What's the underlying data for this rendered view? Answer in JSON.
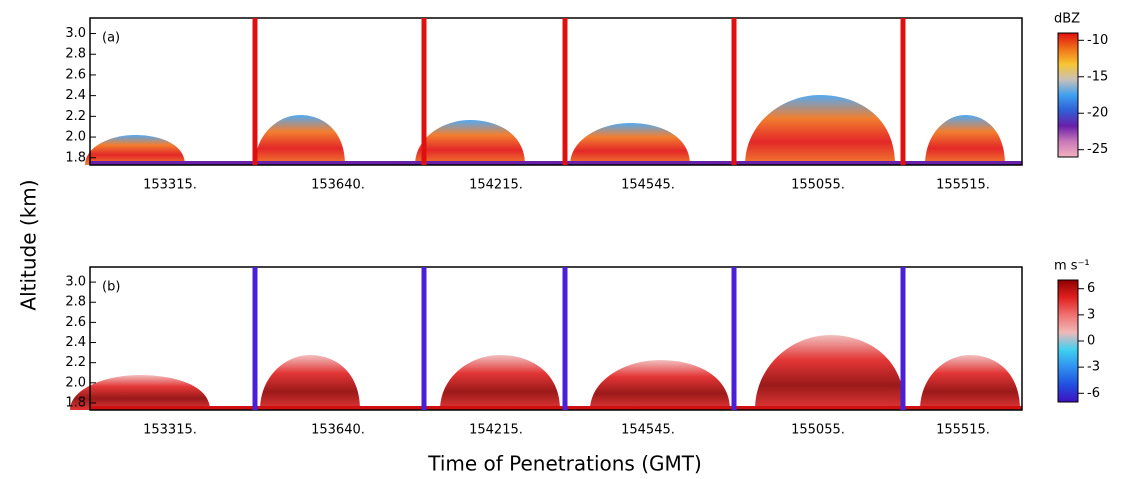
{
  "figure": {
    "ylabel": "Altitude (km)",
    "xlabel": "Time of Penetrations (GMT)"
  },
  "chart_data": [
    {
      "type": "heatmap",
      "panel_label": "(a)",
      "categories": [
        "153315.",
        "153640.",
        "154215.",
        "154545.",
        "155055.",
        "155515."
      ],
      "ylim": [
        1.73,
        3.15
      ],
      "yticks": [
        1.8,
        {
          "value": 2,
          "label": "2.0"
        },
        2.2,
        2.4,
        2.6,
        2.8,
        {
          "value": 3,
          "label": "3.0"
        }
      ],
      "divider_color": "#e01010",
      "colorbar": {
        "label": "dBZ",
        "lim": [
          -26,
          -9
        ],
        "ticks": [
          -10,
          -15,
          -20,
          -25
        ],
        "colors": [
          "#f3b2bd",
          "#c978b8",
          "#6a1fa8",
          "#2f5fd6",
          "#3fa0f0",
          "#c8c0b8",
          "#f7c430",
          "#f07018",
          "#e01010"
        ]
      }
    },
    {
      "type": "heatmap",
      "panel_label": "(b)",
      "categories": [
        "153315.",
        "153640.",
        "154215.",
        "154545.",
        "155055.",
        "155515."
      ],
      "ylim": [
        1.73,
        3.15
      ],
      "yticks": [
        1.8,
        {
          "value": 2,
          "label": "2.0"
        },
        2.2,
        2.4,
        2.6,
        2.8,
        {
          "value": 3,
          "label": "3.0"
        }
      ],
      "divider_color": "#4a1fd8",
      "colorbar": {
        "label": "m s⁻¹",
        "lim": [
          -7,
          7
        ],
        "ticks": [
          6,
          3,
          0,
          -3,
          -6
        ],
        "colors": [
          "#4010c0",
          "#2050e0",
          "#3090f0",
          "#40d0f0",
          "#f0b8b8",
          "#f07070",
          "#e02020",
          "#900000"
        ]
      }
    }
  ]
}
